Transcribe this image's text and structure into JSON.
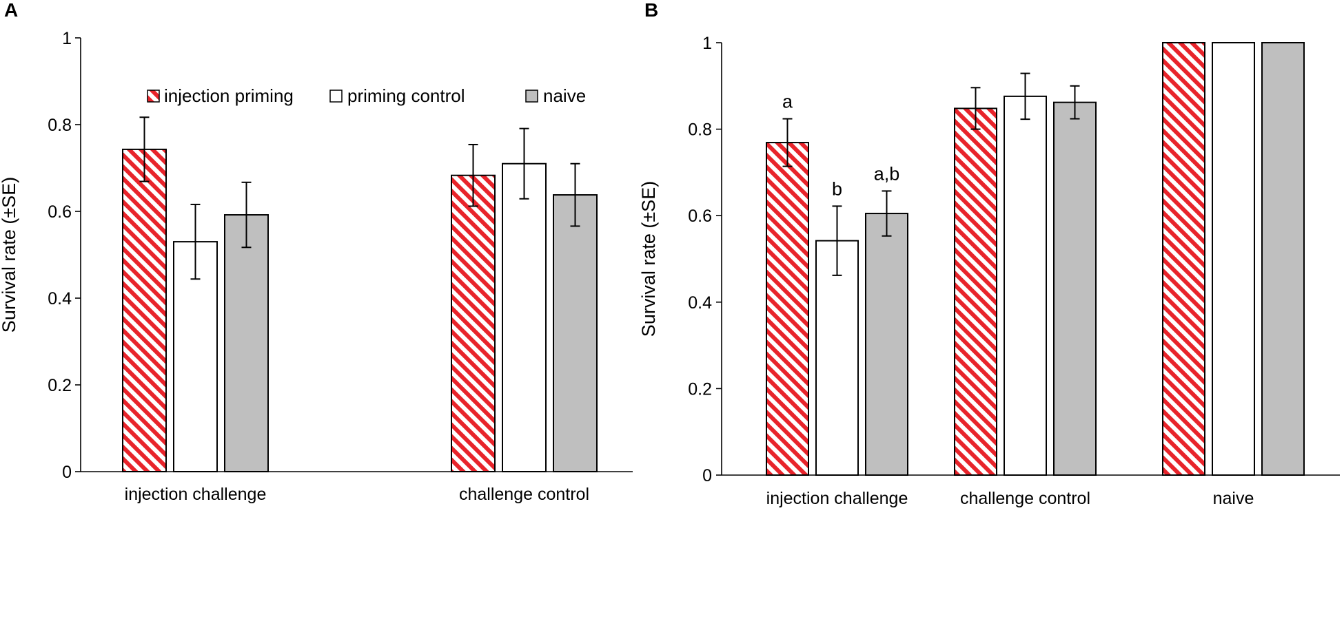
{
  "colors": {
    "hatch_red": "#e8242b",
    "hatch_white": "#ffffff",
    "priming_control_fill": "#ffffff",
    "naive_fill": "#bfbfbf",
    "axis": "#000000"
  },
  "legend": [
    {
      "name": "injection priming",
      "fill": "hatch"
    },
    {
      "name": "priming control",
      "fill": "#ffffff"
    },
    {
      "name": "naive",
      "fill": "#bfbfbf"
    }
  ],
  "chart_data": [
    {
      "panel": "A",
      "type": "bar",
      "ylabel": "Survival rate (±SE)",
      "xlabel": "",
      "ylim": [
        0,
        1
      ],
      "yticks": [
        0,
        0.2,
        0.4,
        0.6,
        0.8,
        1
      ],
      "ytick_labels": [
        "0",
        "0.2",
        "0.4",
        "0.6",
        "0.8",
        "1"
      ],
      "grid": false,
      "legend_position": "top-center",
      "categories": [
        "injection challenge",
        "challenge control"
      ],
      "series": [
        {
          "name": "injection priming",
          "values": [
            0.743,
            0.683
          ],
          "se": [
            0.074,
            0.071
          ],
          "sig": [
            "",
            ""
          ]
        },
        {
          "name": "priming control",
          "values": [
            0.53,
            0.71
          ],
          "se": [
            0.086,
            0.081
          ],
          "sig": [
            "",
            ""
          ]
        },
        {
          "name": "naive",
          "values": [
            0.592,
            0.638
          ],
          "se": [
            0.075,
            0.072
          ],
          "sig": [
            "",
            ""
          ]
        }
      ]
    },
    {
      "panel": "B",
      "type": "bar",
      "ylabel": "Survival rate (±SE)",
      "xlabel": "",
      "ylim": [
        0,
        1
      ],
      "yticks": [
        0,
        0.2,
        0.4,
        0.6,
        0.8,
        1
      ],
      "ytick_labels": [
        "0",
        "0.2",
        "0.4",
        "0.6",
        "0.8",
        "1"
      ],
      "grid": false,
      "legend_position": "none",
      "categories": [
        "injection challenge",
        "challenge control",
        "naive"
      ],
      "series": [
        {
          "name": "injection priming",
          "values": [
            0.769,
            0.848,
            1.0
          ],
          "se": [
            0.055,
            0.048,
            0
          ],
          "sig": [
            "a",
            "",
            ""
          ]
        },
        {
          "name": "priming control",
          "values": [
            0.542,
            0.876,
            1.0
          ],
          "se": [
            0.08,
            0.053,
            0
          ],
          "sig": [
            "b",
            "",
            ""
          ]
        },
        {
          "name": "naive",
          "values": [
            0.605,
            0.862,
            1.0
          ],
          "se": [
            0.052,
            0.038,
            0
          ],
          "sig": [
            "a,b",
            "",
            ""
          ]
        }
      ]
    }
  ]
}
